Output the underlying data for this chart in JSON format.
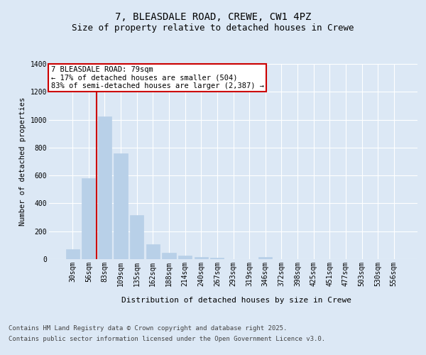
{
  "title_line1": "7, BLEASDALE ROAD, CREWE, CW1 4PZ",
  "title_line2": "Size of property relative to detached houses in Crewe",
  "xlabel": "Distribution of detached houses by size in Crewe",
  "ylabel": "Number of detached properties",
  "categories": [
    "30sqm",
    "56sqm",
    "83sqm",
    "109sqm",
    "135sqm",
    "162sqm",
    "188sqm",
    "214sqm",
    "240sqm",
    "267sqm",
    "293sqm",
    "319sqm",
    "346sqm",
    "372sqm",
    "398sqm",
    "425sqm",
    "451sqm",
    "477sqm",
    "503sqm",
    "530sqm",
    "556sqm"
  ],
  "values": [
    70,
    580,
    1025,
    760,
    315,
    105,
    45,
    25,
    15,
    10,
    0,
    0,
    15,
    0,
    0,
    0,
    0,
    0,
    0,
    0,
    0
  ],
  "bar_color": "#b8d0e8",
  "bar_edgecolor": "#b8d0e8",
  "vline_x": 1.5,
  "vline_color": "#cc0000",
  "annotation_text": "7 BLEASDALE ROAD: 79sqm\n← 17% of detached houses are smaller (504)\n83% of semi-detached houses are larger (2,387) →",
  "annotation_box_edgecolor": "#cc0000",
  "ylim": [
    0,
    1400
  ],
  "yticks": [
    0,
    200,
    400,
    600,
    800,
    1000,
    1200,
    1400
  ],
  "bg_color": "#dce8f5",
  "grid_color": "#ffffff",
  "footer_line1": "Contains HM Land Registry data © Crown copyright and database right 2025.",
  "footer_line2": "Contains public sector information licensed under the Open Government Licence v3.0.",
  "title_fontsize": 10,
  "subtitle_fontsize": 9,
  "ylabel_fontsize": 7.5,
  "tick_fontsize": 7,
  "xlabel_fontsize": 8,
  "footer_fontsize": 6.5,
  "ann_fontsize": 7.5
}
